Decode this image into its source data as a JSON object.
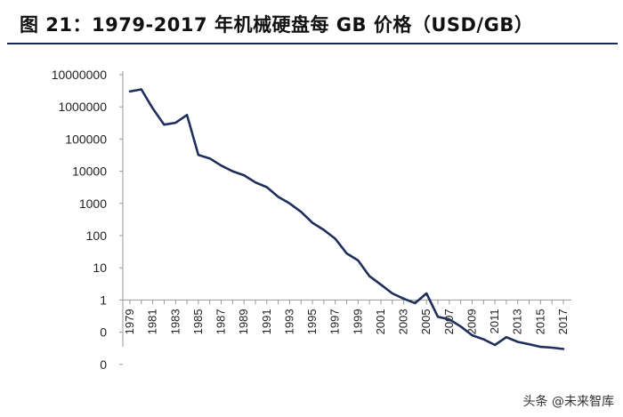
{
  "title": "图 21：1979-2017 年机械硬盘每 GB 价格（USD/GB）",
  "watermark": "头条 @未来智库",
  "colors": {
    "line": "#1f2f5c",
    "axis": "#999999",
    "title_rule": "#1a2a55"
  },
  "chart_data": {
    "type": "line",
    "title": "",
    "xlabel": "",
    "ylabel": "",
    "y_scale": "log",
    "y_tick_labels": [
      "10000000",
      "1000000",
      "100000",
      "10000",
      "1000",
      "100",
      "10",
      "1",
      "0",
      "0"
    ],
    "x_tick_labels": [
      "1979",
      "1981",
      "1983",
      "1985",
      "1987",
      "1989",
      "1991",
      "1993",
      "1995",
      "1997",
      "1999",
      "2001",
      "2003",
      "2005",
      "2007",
      "2009",
      "2011",
      "2013",
      "2015",
      "2017"
    ],
    "grid": false,
    "series": [
      {
        "x": [
          1979,
          1980,
          1981,
          1982,
          1983,
          1984,
          1985,
          1986,
          1987,
          1988,
          1989,
          1990,
          1991,
          1992,
          1993,
          1994,
          1995,
          1996,
          1997,
          1998,
          1999,
          2000,
          2001,
          2002,
          2003,
          2004,
          2005,
          2006,
          2007,
          2008,
          2009,
          2010,
          2011,
          2012,
          2013,
          2014,
          2015,
          2016,
          2017
        ],
        "y": [
          3000000,
          3500000,
          900000,
          280000,
          320000,
          560000,
          32000,
          25000,
          15000,
          10000,
          7500,
          4500,
          3200,
          1600,
          1000,
          550,
          250,
          150,
          80,
          28,
          17,
          5.5,
          3,
          1.6,
          1.1,
          0.8,
          1.6,
          0.3,
          0.25,
          0.15,
          0.08,
          0.06,
          0.04,
          0.07,
          0.05,
          0.042,
          0.035,
          0.033,
          0.03
        ]
      }
    ]
  }
}
